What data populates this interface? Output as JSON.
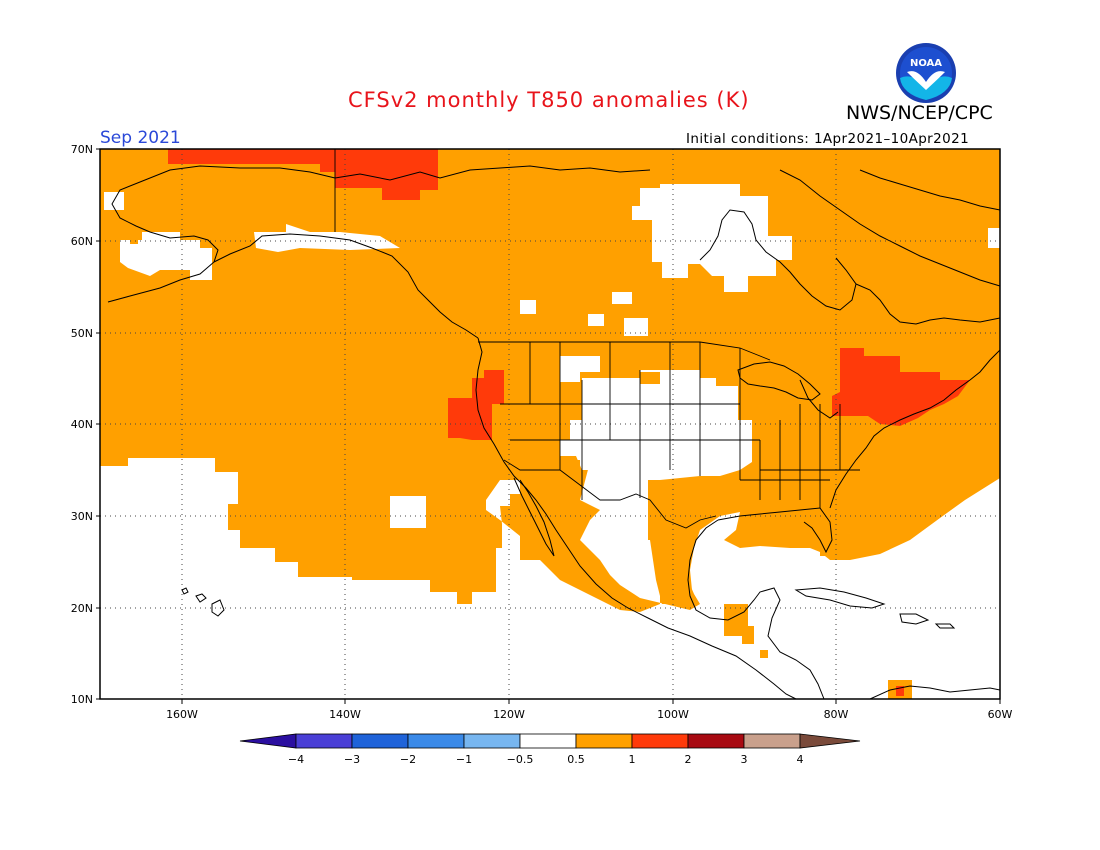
{
  "title": "CFSv2 monthly T850 anomalies (K)",
  "agency": "NWS/NCEP/CPC",
  "logo_text": "NOAA",
  "valid_month": "Sep 2021",
  "initial_conditions": "Initial conditions: 1Apr2021–10Apr2021",
  "map": {
    "lat_labels": [
      "70N",
      "60N",
      "50N",
      "40N",
      "30N",
      "20N",
      "10N"
    ],
    "lon_labels": [
      "160W",
      "140W",
      "120W",
      "100W",
      "80W",
      "60W"
    ]
  },
  "colorbar": {
    "labels": [
      "−4",
      "−3",
      "−2",
      "−1",
      "−0.5",
      "0.5",
      "1",
      "2",
      "3",
      "4"
    ],
    "colors": [
      "#2b0fa0",
      "#4a3fd6",
      "#1f63d9",
      "#3b8ae8",
      "#77b6f0",
      "#ffffff",
      "#ffa000",
      "#ff3a0a",
      "#a80a12",
      "#c9a08c",
      "#7a4a3a"
    ]
  },
  "colors": {
    "pos_05_1": "#ffa000",
    "pos_1_2": "#ff3a0a",
    "title_red": "#e8141b",
    "date_blue": "#2a48d8"
  }
}
